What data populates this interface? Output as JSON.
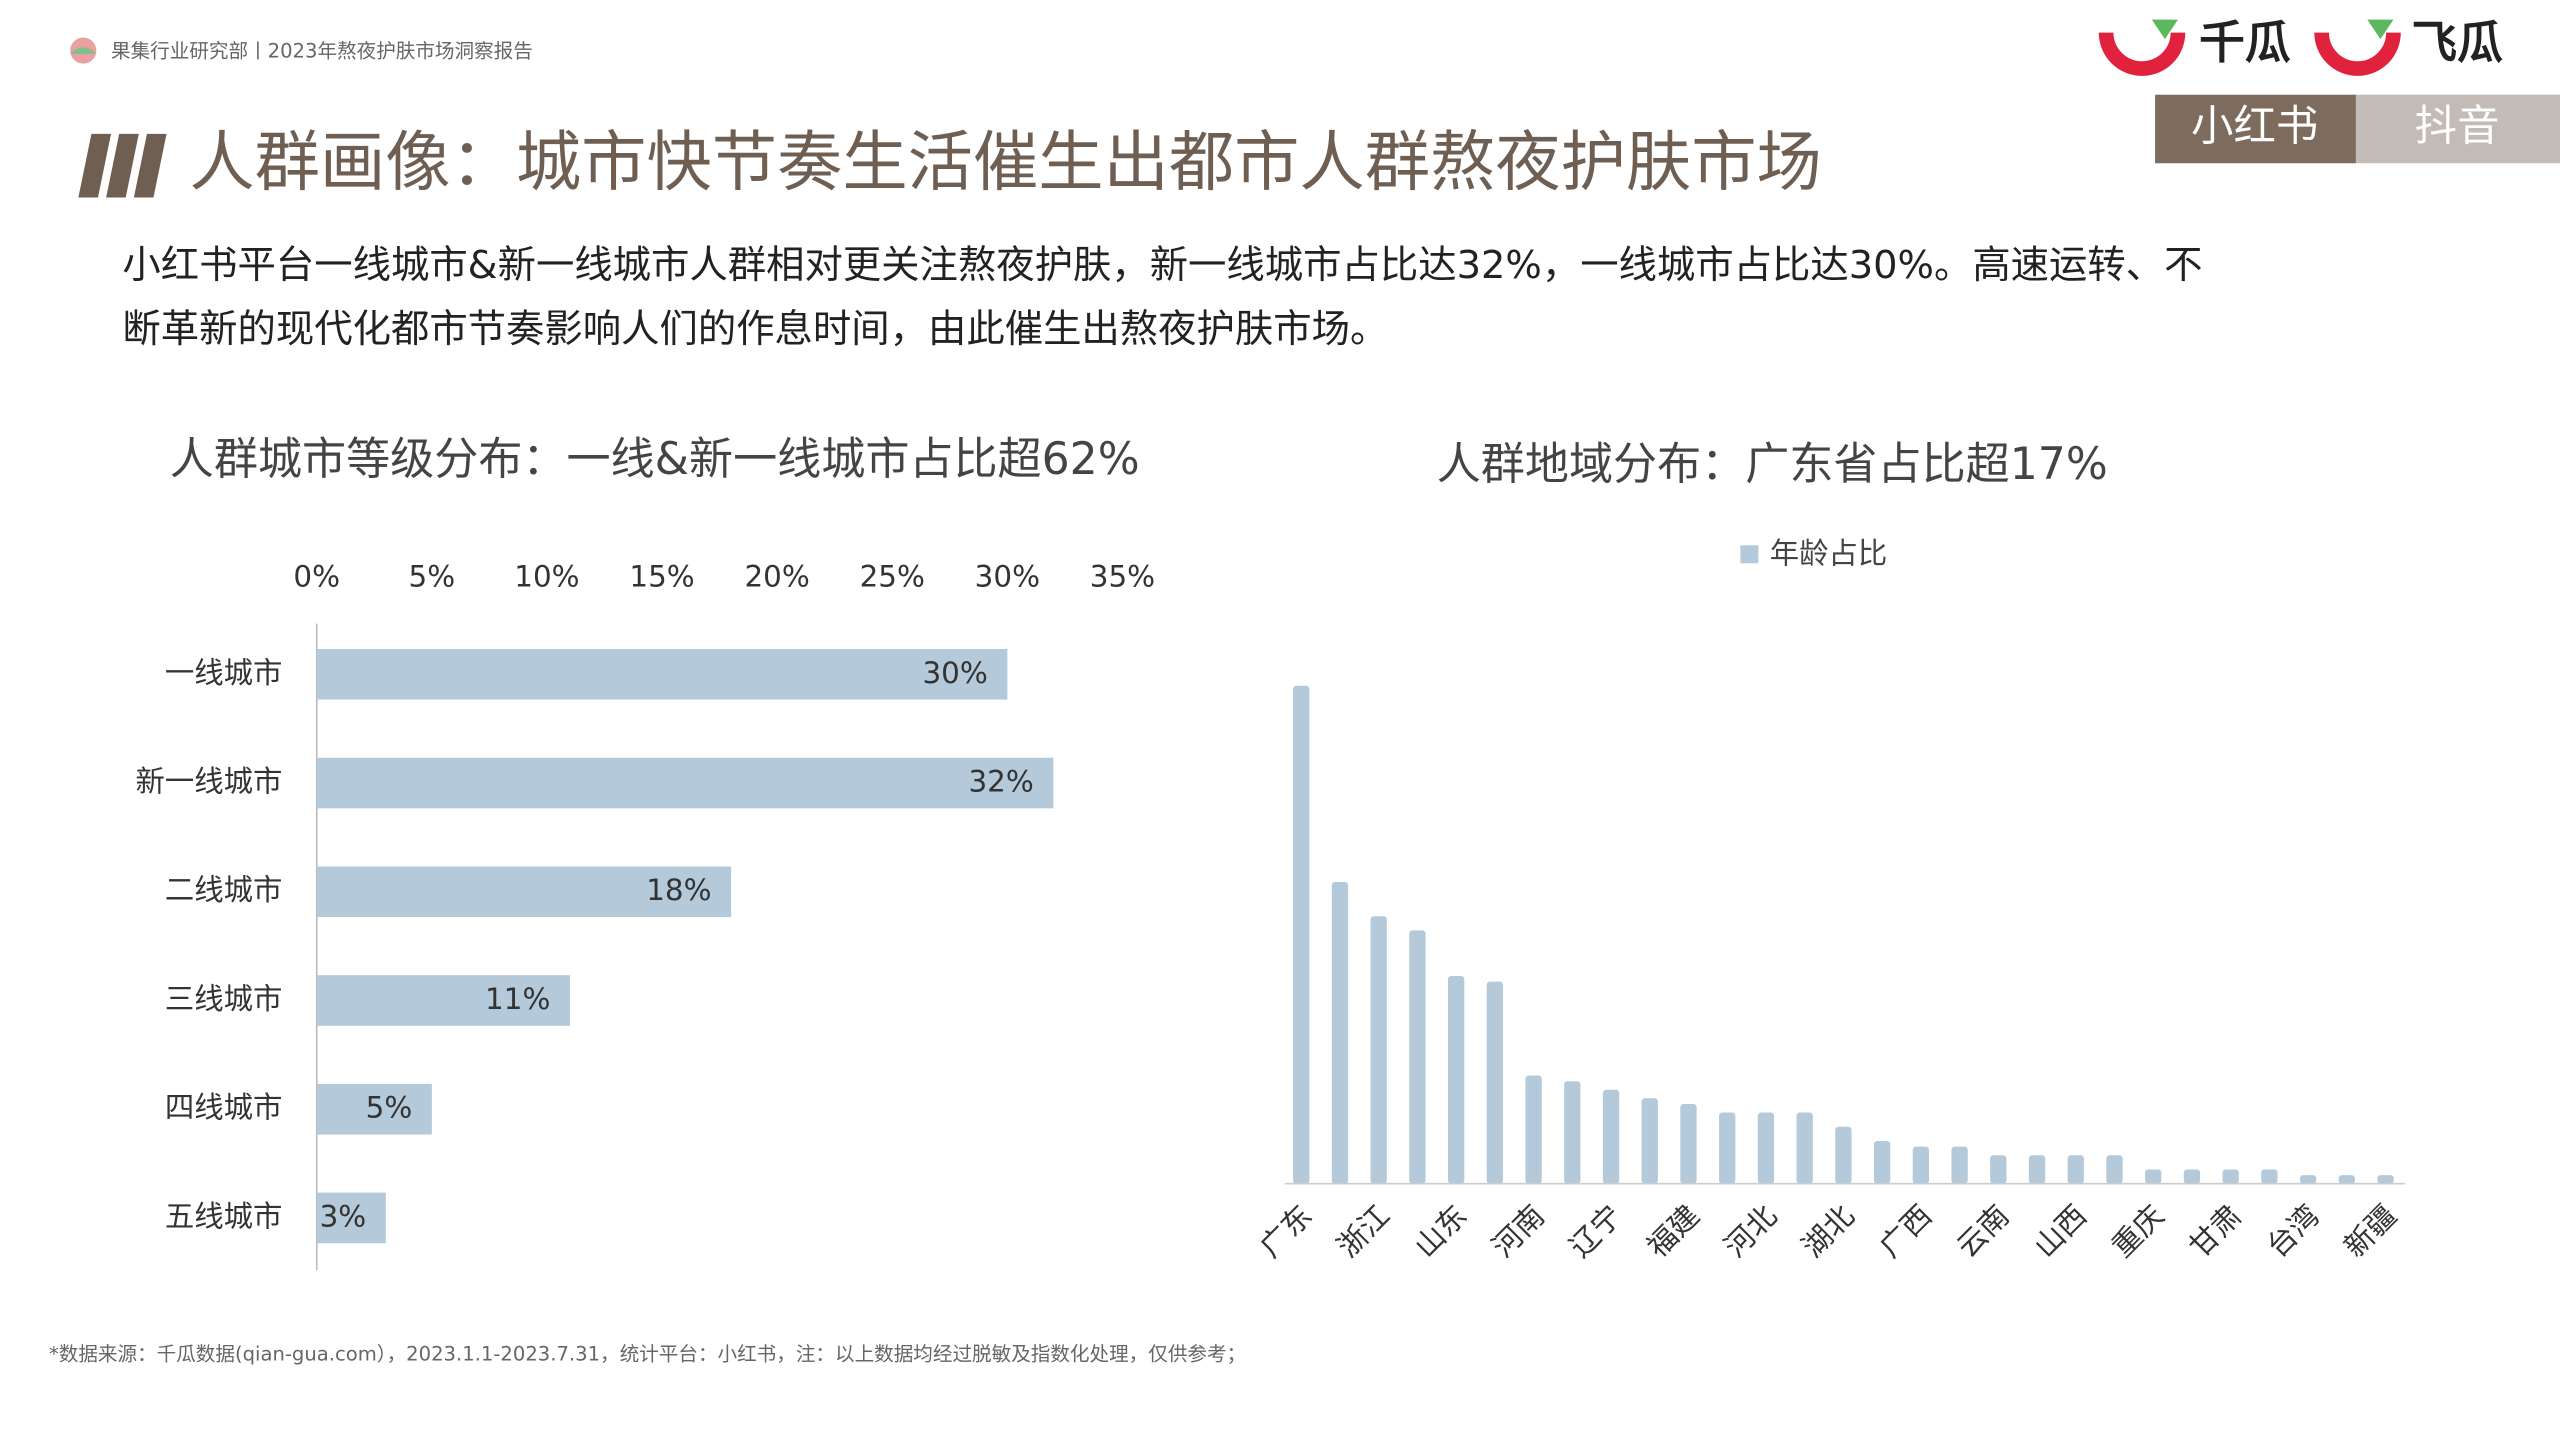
{
  "header": {
    "report": "果集行业研究部丨2023年熬夜护肤市场洞察报告",
    "logos": [
      "千瓜",
      "飞瓜"
    ],
    "tabs": [
      "小红书",
      "抖音"
    ]
  },
  "title": "人群画像：城市快节奏生活催生出都市人群熬夜护肤市场",
  "intro": [
    "小红书平台一线城市&新一线城市人群相对更关注熬夜护肤，新一线城市占比达32%，一线城市占比达30%。高速运转、不",
    "断革新的现代化都市节奏影响人们的作息时间，由此催生出熬夜护肤市场。"
  ],
  "chart_data": [
    {
      "type": "hbar",
      "title": "人群城市等级分布：一线&新一线城市占比超62%",
      "categories": [
        "一线城市",
        "新一线城市",
        "二线城市",
        "三线城市",
        "四线城市",
        "五线城市"
      ],
      "values": [
        30,
        32,
        18,
        11,
        5,
        3
      ],
      "value_labels": [
        "30%",
        "32%",
        "18%",
        "11%",
        "5%",
        "3%"
      ],
      "color": "#b4c9d9",
      "xlim": [
        0,
        35
      ],
      "xticks": [
        {
          "value": 0,
          "label": "0%"
        },
        {
          "value": 5,
          "label": "5%"
        },
        {
          "value": 10,
          "label": "10%"
        },
        {
          "value": 15,
          "label": "15%"
        },
        {
          "value": 20,
          "label": "20%"
        },
        {
          "value": 25,
          "label": "25%"
        },
        {
          "value": 30,
          "label": "30%"
        },
        {
          "value": 35,
          "label": "35%"
        }
      ]
    },
    {
      "type": "bar",
      "title": "人群地域分布：广东省占比超17%",
      "categories": [
        "广东",
        null,
        "浙江",
        null,
        "山东",
        null,
        "河南",
        null,
        "辽宁",
        null,
        "福建",
        null,
        "河北",
        null,
        "湖北",
        null,
        "广西",
        null,
        "云南",
        null,
        "山西",
        null,
        "重庆",
        null,
        "甘肃",
        null,
        "台湾",
        null,
        "新疆"
      ],
      "series": [
        {
          "name": "年龄占比",
          "color": "#b4c9d9",
          "values": [
            17.5,
            10.6,
            9.4,
            8.9,
            7.3,
            7.1,
            3.8,
            3.6,
            3.3,
            3.0,
            2.8,
            2.5,
            2.5,
            2.5,
            2.0,
            1.5,
            1.3,
            1.3,
            1.0,
            1.0,
            1.0,
            1.0,
            0.5,
            0.5,
            0.5,
            0.5,
            0.3,
            0.3,
            0.3
          ]
        }
      ]
    }
  ],
  "footnote": "*数据来源：千瓜数据(qian-gua.com），2023.1.1-2023.7.31，统计平台：小红书，注：以上数据均经过脱敏及指数化处理，仅供参考；"
}
